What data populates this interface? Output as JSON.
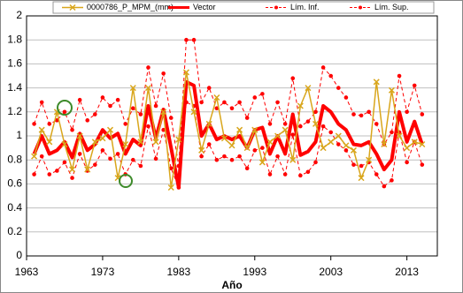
{
  "chart_data": {
    "type": "line",
    "x_label": "Año",
    "x": [
      1964,
      1965,
      1966,
      1967,
      1968,
      1969,
      1970,
      1971,
      1972,
      1973,
      1974,
      1975,
      1976,
      1977,
      1978,
      1979,
      1980,
      1981,
      1982,
      1983,
      1984,
      1985,
      1986,
      1987,
      1988,
      1989,
      1990,
      1991,
      1992,
      1993,
      1994,
      1995,
      1996,
      1997,
      1998,
      1999,
      2000,
      2001,
      2002,
      2003,
      2004,
      2005,
      2006,
      2007,
      2008,
      2009,
      2010,
      2011,
      2012,
      2013,
      2014,
      2015
    ],
    "series": [
      {
        "name": "0000786_P_MPM_(mm)",
        "color": "#d9a61c",
        "marker": "x",
        "dash": false,
        "width": 1.5,
        "values": [
          0.83,
          1.05,
          0.95,
          1.2,
          0.93,
          0.72,
          1.0,
          0.72,
          0.95,
          0.98,
          1.05,
          0.65,
          0.93,
          1.4,
          0.95,
          1.4,
          0.95,
          1.2,
          0.57,
          0.97,
          1.53,
          1.2,
          0.88,
          1.1,
          1.32,
          0.98,
          0.92,
          1.05,
          0.9,
          1.05,
          0.78,
          0.95,
          1.0,
          1.05,
          0.8,
          1.25,
          1.4,
          1.1,
          0.9,
          0.95,
          1.0,
          0.92,
          0.88,
          0.65,
          0.8,
          1.45,
          0.93,
          1.38,
          1.0,
          0.9,
          0.95,
          0.93
        ]
      },
      {
        "name": "Vector",
        "color": "#ff0000",
        "marker": "none",
        "dash": false,
        "width": 4,
        "values": [
          0.85,
          1.0,
          0.85,
          0.88,
          0.95,
          0.82,
          1.02,
          0.88,
          0.93,
          1.05,
          0.98,
          1.02,
          0.85,
          0.97,
          0.92,
          1.25,
          0.98,
          1.22,
          0.9,
          0.57,
          1.45,
          1.42,
          1.0,
          1.1,
          0.97,
          1.0,
          0.97,
          1.0,
          0.9,
          1.05,
          1.07,
          0.85,
          1.0,
          0.85,
          1.18,
          0.84,
          0.87,
          0.95,
          1.25,
          1.2,
          1.1,
          1.05,
          0.93,
          0.92,
          0.95,
          0.85,
          0.72,
          0.8,
          1.2,
          0.95,
          1.12,
          0.93
        ]
      },
      {
        "name": "Lím. Inf.",
        "color": "#ff0000",
        "marker": "circle",
        "dash": true,
        "width": 1,
        "values": [
          0.68,
          0.83,
          0.68,
          0.71,
          0.78,
          0.65,
          0.85,
          0.71,
          0.76,
          0.88,
          0.81,
          0.85,
          0.68,
          0.8,
          0.75,
          1.08,
          0.81,
          1.05,
          0.73,
          0.57,
          1.28,
          1.25,
          0.83,
          0.93,
          0.8,
          0.83,
          0.8,
          0.83,
          0.73,
          0.88,
          0.9,
          0.68,
          0.83,
          0.68,
          1.01,
          0.67,
          0.7,
          0.78,
          1.08,
          1.03,
          0.93,
          0.88,
          0.76,
          0.75,
          0.78,
          0.68,
          0.58,
          0.63,
          1.03,
          0.78,
          0.95,
          0.76
        ]
      },
      {
        "name": "Lím. Sup.",
        "color": "#ff0000",
        "marker": "circle",
        "dash": true,
        "width": 1,
        "values": [
          1.1,
          1.28,
          1.1,
          1.13,
          1.2,
          1.05,
          1.3,
          1.13,
          1.18,
          1.32,
          1.25,
          1.3,
          1.1,
          1.23,
          1.18,
          1.57,
          1.25,
          1.52,
          1.15,
          0.75,
          1.8,
          1.8,
          1.28,
          1.4,
          1.23,
          1.28,
          1.23,
          1.28,
          1.15,
          1.32,
          1.35,
          1.1,
          1.28,
          1.1,
          1.48,
          1.08,
          1.12,
          1.2,
          1.57,
          1.5,
          1.4,
          1.32,
          1.18,
          1.17,
          1.2,
          1.1,
          0.93,
          1.03,
          1.5,
          1.2,
          1.42,
          1.18
        ]
      }
    ],
    "xlim": [
      1963,
      2017
    ],
    "xticks": [
      1963,
      1973,
      1983,
      1993,
      2003,
      2013
    ],
    "ylim": [
      0,
      2
    ],
    "yticks": [
      0,
      0.2,
      0.4,
      0.6,
      0.8,
      1,
      1.2,
      1.4,
      1.6,
      1.8,
      2
    ],
    "grid": true,
    "legend": "top"
  }
}
